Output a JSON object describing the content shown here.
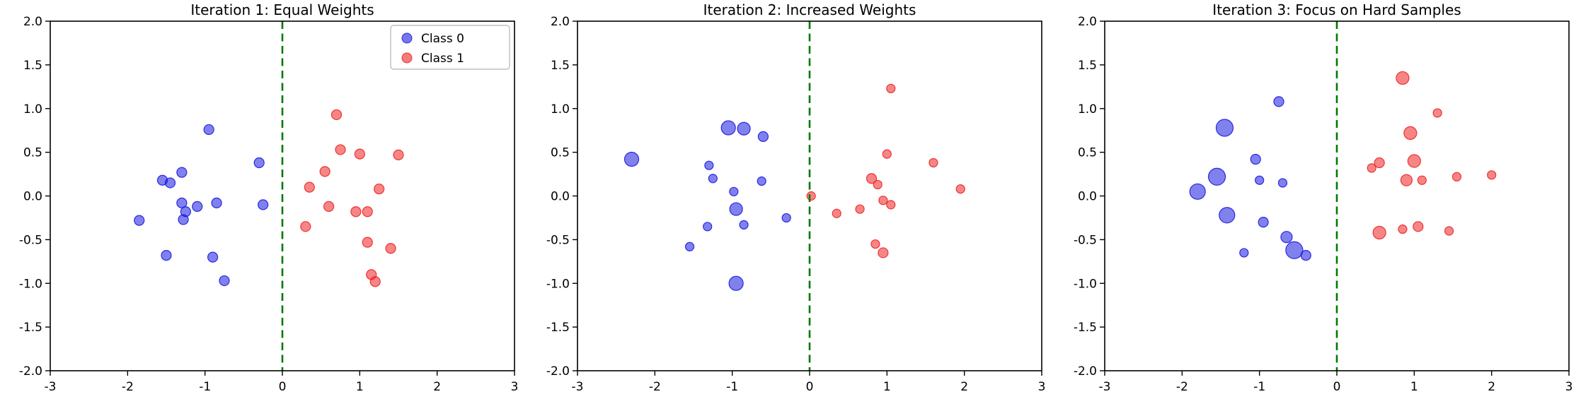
{
  "style": {
    "class0_color": "#1a1ae0",
    "class1_color": "#ee2222",
    "boundary_color": "#007a00",
    "background": "#ffffff",
    "axes_color": "#000000"
  },
  "chart_data": [
    {
      "type": "scatter",
      "title": "Iteration 1: Equal Weights",
      "xlabel": "",
      "ylabel": "",
      "xlim": [
        -3,
        3
      ],
      "ylim": [
        -2,
        2
      ],
      "grid": false,
      "xticks": [
        -3,
        -2,
        -1,
        0,
        1,
        2,
        3
      ],
      "xtick_labels": [
        "-3",
        "-2",
        "-1",
        "0",
        "1",
        "2",
        "3"
      ],
      "yticks": [
        -2.0,
        -1.5,
        -1.0,
        -0.5,
        0.0,
        0.5,
        1.0,
        1.5,
        2.0
      ],
      "ytick_labels": [
        "-2.0",
        "-1.5",
        "-1.0",
        "-0.5",
        "0.0",
        "0.5",
        "1.0",
        "1.5",
        "2.0"
      ],
      "boundary_x": 0,
      "legend": {
        "position": "upper right",
        "entries": [
          "Class 0",
          "Class 1"
        ]
      },
      "series": [
        {
          "name": "Class 0",
          "color_key": "class0_color",
          "points": [
            [
              -1.85,
              -0.28,
              7
            ],
            [
              -1.55,
              0.18,
              7
            ],
            [
              -1.45,
              0.15,
              7
            ],
            [
              -1.5,
              -0.68,
              7
            ],
            [
              -1.3,
              0.27,
              7
            ],
            [
              -1.3,
              -0.08,
              7
            ],
            [
              -1.25,
              -0.18,
              7
            ],
            [
              -1.28,
              -0.27,
              7
            ],
            [
              -1.1,
              -0.12,
              7
            ],
            [
              -0.95,
              0.76,
              7
            ],
            [
              -0.9,
              -0.7,
              7
            ],
            [
              -0.85,
              -0.08,
              7
            ],
            [
              -0.75,
              -0.97,
              7
            ],
            [
              -0.3,
              0.38,
              7
            ],
            [
              -0.25,
              -0.1,
              7
            ]
          ]
        },
        {
          "name": "Class 1",
          "color_key": "class1_color",
          "points": [
            [
              0.3,
              -0.35,
              7
            ],
            [
              0.35,
              0.1,
              7
            ],
            [
              0.55,
              0.28,
              7
            ],
            [
              0.6,
              -0.12,
              7
            ],
            [
              0.7,
              0.93,
              7
            ],
            [
              0.75,
              0.53,
              7
            ],
            [
              0.95,
              -0.18,
              7
            ],
            [
              1.0,
              0.48,
              7
            ],
            [
              1.1,
              -0.18,
              7
            ],
            [
              1.1,
              -0.53,
              7
            ],
            [
              1.15,
              -0.9,
              7
            ],
            [
              1.2,
              -0.98,
              7
            ],
            [
              1.25,
              0.08,
              7
            ],
            [
              1.4,
              -0.6,
              7
            ],
            [
              1.5,
              0.47,
              7
            ]
          ]
        }
      ]
    },
    {
      "type": "scatter",
      "title": "Iteration 2: Increased Weights",
      "xlabel": "",
      "ylabel": "",
      "xlim": [
        -3,
        3
      ],
      "ylim": [
        -2,
        2
      ],
      "grid": false,
      "xticks": [
        -3,
        -2,
        -1,
        0,
        1,
        2,
        3
      ],
      "xtick_labels": [
        "-3",
        "-2",
        "-1",
        "0",
        "1",
        "2",
        "3"
      ],
      "yticks": [
        -2.0,
        -1.5,
        -1.0,
        -0.5,
        0.0,
        0.5,
        1.0,
        1.5,
        2.0
      ],
      "ytick_labels": [
        "-2.0",
        "-1.5",
        "-1.0",
        "-0.5",
        "0.0",
        "0.5",
        "1.0",
        "1.5",
        "2.0"
      ],
      "boundary_x": 0,
      "legend": null,
      "series": [
        {
          "name": "Class 0",
          "color_key": "class0_color",
          "points": [
            [
              -2.3,
              0.42,
              10
            ],
            [
              -1.55,
              -0.58,
              6
            ],
            [
              -1.3,
              0.35,
              6
            ],
            [
              -1.25,
              0.2,
              6
            ],
            [
              -1.32,
              -0.35,
              6
            ],
            [
              -1.05,
              0.78,
              10
            ],
            [
              -0.85,
              0.77,
              9
            ],
            [
              -0.98,
              0.05,
              6
            ],
            [
              -0.95,
              -0.15,
              9
            ],
            [
              -0.85,
              -0.33,
              6
            ],
            [
              -0.6,
              0.68,
              7
            ],
            [
              -0.62,
              0.17,
              6
            ],
            [
              -0.95,
              -1.0,
              10
            ],
            [
              -0.3,
              -0.25,
              6
            ]
          ]
        },
        {
          "name": "Class 1",
          "color_key": "class1_color",
          "points": [
            [
              0.02,
              0.0,
              6
            ],
            [
              0.35,
              -0.2,
              6
            ],
            [
              0.65,
              -0.15,
              6
            ],
            [
              0.8,
              0.2,
              7
            ],
            [
              0.88,
              0.13,
              6
            ],
            [
              0.95,
              -0.05,
              6
            ],
            [
              1.0,
              0.48,
              6
            ],
            [
              1.05,
              1.23,
              6
            ],
            [
              0.85,
              -0.55,
              6
            ],
            [
              0.95,
              -0.65,
              7
            ],
            [
              1.05,
              -0.1,
              6
            ],
            [
              1.6,
              0.38,
              6
            ],
            [
              1.95,
              0.08,
              6
            ]
          ]
        }
      ]
    },
    {
      "type": "scatter",
      "title": "Iteration 3: Focus on Hard Samples",
      "xlabel": "",
      "ylabel": "",
      "xlim": [
        -3,
        3
      ],
      "ylim": [
        -2,
        2
      ],
      "grid": false,
      "xticks": [
        -3,
        -2,
        -1,
        0,
        1,
        2,
        3
      ],
      "xtick_labels": [
        "-3",
        "-2",
        "-1",
        "0",
        "1",
        "2",
        "3"
      ],
      "yticks": [
        -2.0,
        -1.5,
        -1.0,
        -0.5,
        0.0,
        0.5,
        1.0,
        1.5,
        2.0
      ],
      "ytick_labels": [
        "-2.0",
        "-1.5",
        "-1.0",
        "-0.5",
        "0.0",
        "0.5",
        "1.0",
        "1.5",
        "2.0"
      ],
      "boundary_x": 0,
      "legend": null,
      "series": [
        {
          "name": "Class 0",
          "color_key": "class0_color",
          "points": [
            [
              -1.8,
              0.05,
              11
            ],
            [
              -1.55,
              0.22,
              12
            ],
            [
              -1.45,
              0.78,
              12
            ],
            [
              -1.42,
              -0.22,
              11
            ],
            [
              -1.2,
              -0.65,
              6
            ],
            [
              -1.05,
              0.42,
              7
            ],
            [
              -1.0,
              0.18,
              6
            ],
            [
              -0.95,
              -0.3,
              7
            ],
            [
              -0.75,
              1.08,
              7
            ],
            [
              -0.7,
              0.15,
              6
            ],
            [
              -0.65,
              -0.47,
              8
            ],
            [
              -0.55,
              -0.62,
              12
            ],
            [
              -0.4,
              -0.68,
              7
            ]
          ]
        },
        {
          "name": "Class 1",
          "color_key": "class1_color",
          "points": [
            [
              0.45,
              0.32,
              6
            ],
            [
              0.55,
              0.38,
              7
            ],
            [
              0.55,
              -0.42,
              9
            ],
            [
              0.85,
              1.35,
              9
            ],
            [
              0.95,
              0.72,
              9
            ],
            [
              0.9,
              0.18,
              8
            ],
            [
              1.0,
              0.4,
              9
            ],
            [
              1.1,
              0.18,
              6
            ],
            [
              0.85,
              -0.38,
              6
            ],
            [
              1.05,
              -0.35,
              7
            ],
            [
              1.3,
              0.95,
              6
            ],
            [
              1.55,
              0.22,
              6
            ],
            [
              1.45,
              -0.4,
              6
            ],
            [
              2.0,
              0.24,
              6
            ]
          ]
        }
      ]
    }
  ]
}
